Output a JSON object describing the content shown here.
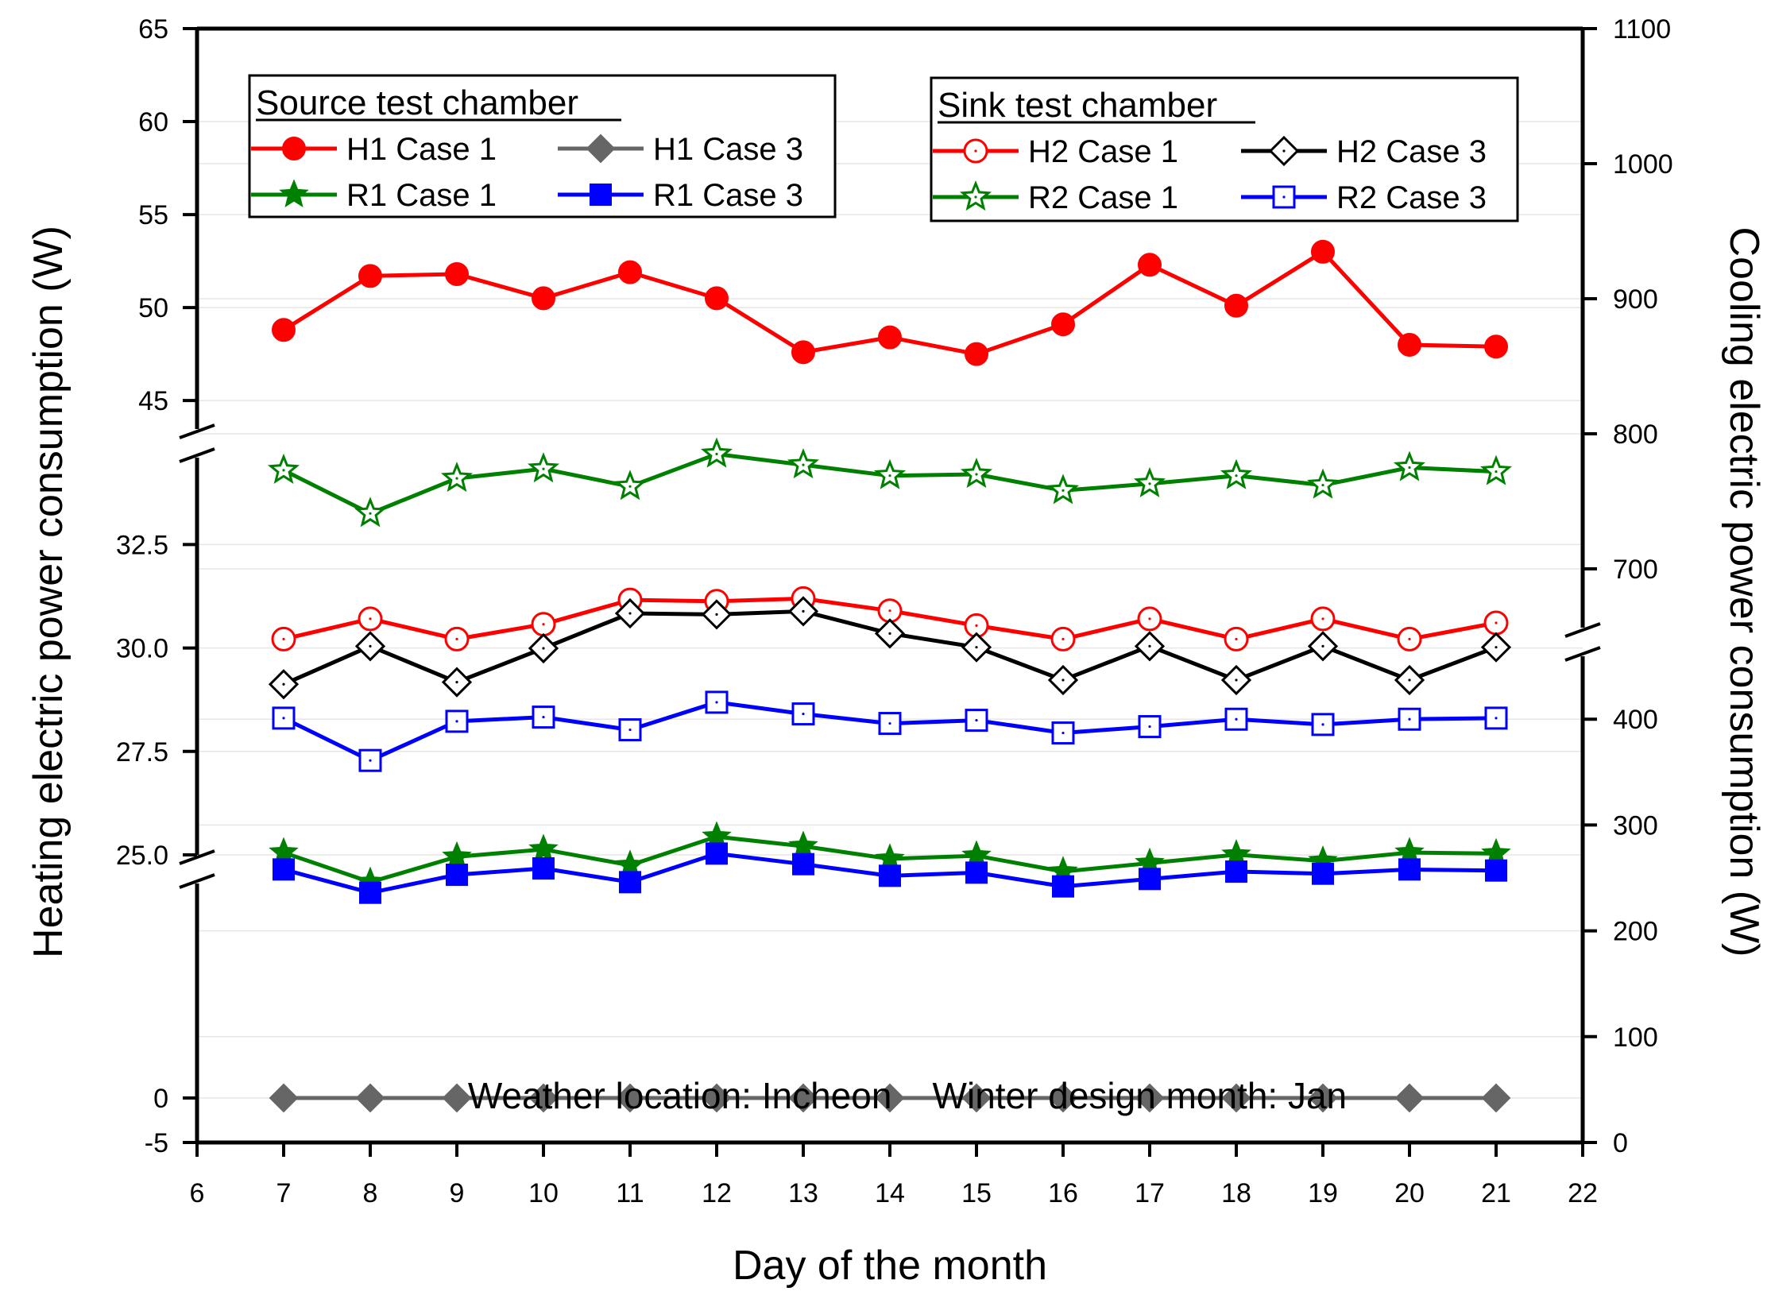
{
  "chart_data": {
    "type": "line",
    "xlabel": "Day of the month",
    "ylabel_left": "Heating electric power consumption (W)",
    "ylabel_right": "Cooling electric power consumption (W)",
    "xlim": [
      6,
      22
    ],
    "xticks": [
      "6",
      "7",
      "8",
      "9",
      "10",
      "11",
      "12",
      "13",
      "14",
      "15",
      "16",
      "17",
      "18",
      "19",
      "20",
      "21",
      "22"
    ],
    "left_ticks": [
      "65",
      "60",
      "55",
      "50",
      "45",
      "32.5",
      "30.0",
      "27.5",
      "25.0",
      "0",
      "-5"
    ],
    "right_ticks": [
      "1100",
      "1000",
      "900",
      "800",
      "700",
      "400",
      "300",
      "200",
      "100",
      "0"
    ],
    "left_axis_segments": [
      {
        "range": [
          43,
          65
        ],
        "note": "upper segment"
      },
      {
        "range": [
          25,
          34.6
        ],
        "note": "middle segment"
      },
      {
        "range": [
          -5,
          25
        ],
        "note": "lower segment"
      }
    ],
    "right_axis_segments": [
      {
        "range": [
          650,
          1100
        ],
        "note": "upper segment"
      },
      {
        "range": [
          0,
          470
        ],
        "note": "lower segment"
      }
    ],
    "x": [
      7,
      8,
      9,
      10,
      11,
      12,
      13,
      14,
      15,
      16,
      17,
      18,
      19,
      20,
      21
    ],
    "series": [
      {
        "name": "H1 Case 1",
        "axis": "left",
        "color": "#ff0000",
        "marker": "circle-filled",
        "values": [
          48.8,
          51.7,
          51.8,
          50.5,
          51.9,
          50.5,
          47.6,
          48.4,
          47.5,
          49.1,
          52.3,
          50.1,
          53.0,
          48.0,
          47.9
        ]
      },
      {
        "name": "H1 Case 3",
        "axis": "left",
        "color": "#666666",
        "marker": "diamond-filled",
        "values": [
          0,
          0,
          0,
          0,
          0,
          0,
          0,
          0,
          0,
          0,
          0,
          0,
          0,
          0,
          0
        ]
      },
      {
        "name": "R1 Case 1",
        "axis": "right",
        "color": "#008000",
        "marker": "star-filled",
        "values": [
          274,
          246,
          270,
          277,
          262,
          289,
          280,
          268,
          271,
          256,
          264,
          272,
          266,
          274,
          273
        ]
      },
      {
        "name": "R1 Case 3",
        "axis": "right",
        "color": "#0000ff",
        "marker": "square-filled",
        "values": [
          258,
          236,
          253,
          259,
          246,
          273,
          263,
          252,
          255,
          242,
          249,
          256,
          254,
          258,
          257
        ]
      },
      {
        "name": "H2 Case 1",
        "axis": "right",
        "color": "#ff0000",
        "marker": "circle-open",
        "values": [
          648,
          663,
          648,
          659,
          677,
          676,
          678,
          669,
          658,
          648,
          663,
          648,
          663,
          648,
          660
        ]
      },
      {
        "name": "H2 Case 3",
        "axis": "right",
        "color": "#000000",
        "marker": "diamond-open",
        "values": [
          433,
          469,
          435,
          467,
          500,
          499,
          502,
          481,
          468,
          437,
          469,
          437,
          469,
          437,
          468
        ]
      },
      {
        "name": "R2 Case 1",
        "axis": "right",
        "color": "#008000",
        "marker": "star-open",
        "values": [
          773,
          741,
          767,
          774,
          761,
          785,
          777,
          769,
          770,
          758,
          763,
          769,
          762,
          775,
          772
        ]
      },
      {
        "name": "R2 Case 3",
        "axis": "right",
        "color": "#0000ff",
        "marker": "square-open",
        "values": [
          401,
          361,
          398,
          402,
          390,
          416,
          405,
          396,
          399,
          387,
          393,
          400,
          395,
          400,
          401
        ]
      }
    ],
    "legends": [
      {
        "title": "Source test chamber",
        "entries": [
          "H1 Case 1",
          "H1 Case 3",
          "R1 Case 1",
          "R1 Case 3"
        ]
      },
      {
        "title": "Sink test chamber",
        "entries": [
          "H2 Case 1",
          "H2 Case 3",
          "R2 Case 1",
          "R2 Case 3"
        ]
      }
    ],
    "annotation": "Weather location: Incheon    Winter design month: Jan"
  }
}
